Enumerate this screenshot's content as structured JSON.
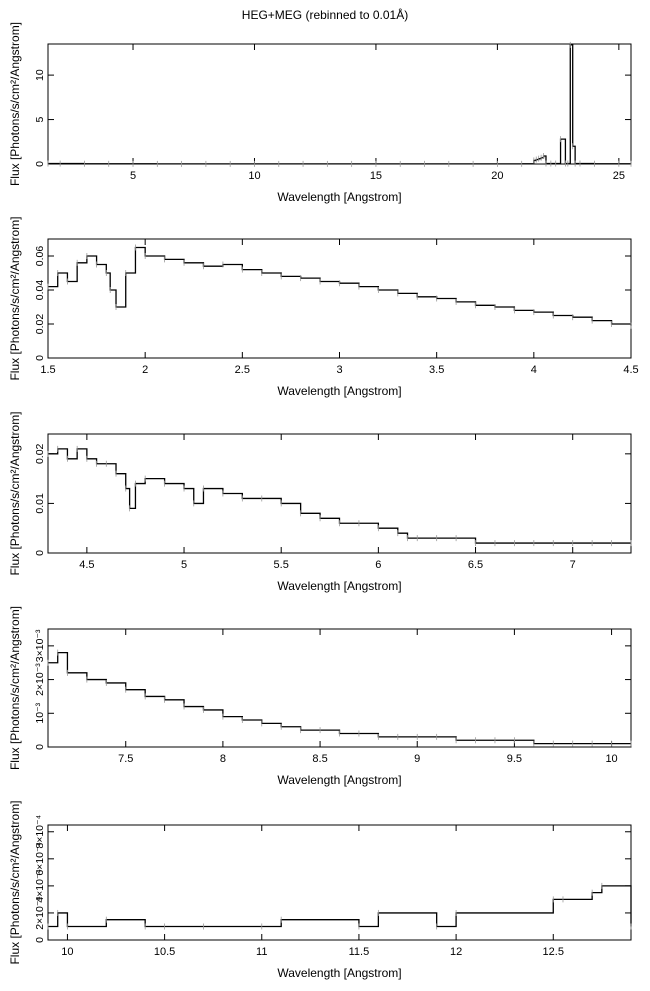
{
  "figure": {
    "title": "HEG+MEG (rebinned to 0.01Å)"
  },
  "chart_data": [
    {
      "type": "line",
      "xlabel": "Wavelength [Angstrom]",
      "ylabel": "Flux [Photons/s/cm²/Angstrom]",
      "xlim": [
        1.5,
        25.5
      ],
      "ylim": [
        0,
        13.5
      ],
      "xticks": [
        5,
        10,
        15,
        20,
        25
      ],
      "xtick_labels": [
        "5",
        "10",
        "15",
        "20",
        "25"
      ],
      "yticks": [
        0,
        5,
        10
      ],
      "ytick_labels": [
        "0",
        "5",
        "10"
      ],
      "grid": false,
      "series": [
        {
          "x": [
            1.5,
            2,
            3,
            4,
            5,
            6,
            7,
            8,
            9,
            10,
            11,
            12,
            13,
            14,
            15,
            16,
            17,
            18,
            19,
            20,
            21,
            21.5,
            21.6,
            21.7,
            21.8,
            21.9,
            22.0,
            22.2,
            22.4,
            22.6,
            22.8,
            22.9,
            23.0,
            23.1,
            23.2,
            23.4,
            24,
            25,
            25.5
          ],
          "y": [
            0.06,
            0.05,
            0.03,
            0.02,
            0.02,
            0.01,
            0.01,
            0.01,
            0.01,
            0.01,
            0.01,
            0.01,
            0.01,
            0.01,
            0.01,
            0.01,
            0.01,
            0.01,
            0.01,
            0.01,
            0.02,
            0.4,
            0.5,
            0.6,
            0.7,
            0.9,
            0.05,
            0.05,
            0.05,
            2.8,
            0.05,
            0.05,
            13.4,
            2.0,
            0.05,
            0.05,
            0.03,
            0.03,
            0.03
          ]
        }
      ]
    },
    {
      "type": "line",
      "xlabel": "Wavelength [Angstrom]",
      "ylabel": "Flux [Photons/s/cm²/Angstrom]",
      "xlim": [
        1.5,
        4.5
      ],
      "ylim": [
        0,
        0.07
      ],
      "xticks": [
        1.5,
        2,
        2.5,
        3,
        3.5,
        4,
        4.5
      ],
      "xtick_labels": [
        "1.5",
        "2",
        "2.5",
        "3",
        "3.5",
        "4",
        "4.5"
      ],
      "yticks": [
        0,
        0.02,
        0.04,
        0.06
      ],
      "ytick_labels": [
        "0",
        "0.02",
        "0.04",
        "0.06"
      ],
      "grid": false,
      "series": [
        {
          "x": [
            1.5,
            1.55,
            1.6,
            1.65,
            1.7,
            1.75,
            1.8,
            1.82,
            1.85,
            1.9,
            1.95,
            2.0,
            2.1,
            2.2,
            2.3,
            2.4,
            2.5,
            2.6,
            2.7,
            2.8,
            2.9,
            3.0,
            3.1,
            3.2,
            3.3,
            3.4,
            3.5,
            3.6,
            3.7,
            3.8,
            3.9,
            4.0,
            4.1,
            4.2,
            4.3,
            4.4,
            4.5
          ],
          "y": [
            0.042,
            0.05,
            0.045,
            0.056,
            0.06,
            0.055,
            0.05,
            0.04,
            0.03,
            0.05,
            0.065,
            0.06,
            0.058,
            0.056,
            0.054,
            0.055,
            0.052,
            0.05,
            0.048,
            0.047,
            0.045,
            0.044,
            0.042,
            0.04,
            0.038,
            0.036,
            0.035,
            0.033,
            0.031,
            0.03,
            0.028,
            0.027,
            0.025,
            0.024,
            0.022,
            0.02,
            0.019
          ]
        }
      ]
    },
    {
      "type": "line",
      "xlabel": "Wavelength [Angstrom]",
      "ylabel": "Flux [Photons/s/cm²/Angstrom]",
      "xlim": [
        4.3,
        7.3
      ],
      "ylim": [
        0,
        0.024
      ],
      "xticks": [
        4.5,
        5,
        5.5,
        6,
        6.5,
        7
      ],
      "xtick_labels": [
        "4.5",
        "5",
        "5.5",
        "6",
        "6.5",
        "7"
      ],
      "yticks": [
        0,
        0.01,
        0.02
      ],
      "ytick_labels": [
        "0",
        "0.01",
        "0.02"
      ],
      "grid": false,
      "series": [
        {
          "x": [
            4.3,
            4.35,
            4.4,
            4.45,
            4.5,
            4.55,
            4.6,
            4.65,
            4.7,
            4.72,
            4.75,
            4.8,
            4.9,
            5.0,
            5.05,
            5.1,
            5.2,
            5.3,
            5.4,
            5.5,
            5.6,
            5.7,
            5.8,
            5.9,
            6.0,
            6.1,
            6.15,
            6.2,
            6.3,
            6.4,
            6.5,
            6.6,
            6.7,
            6.8,
            6.9,
            7.0,
            7.1,
            7.2,
            7.3
          ],
          "y": [
            0.02,
            0.021,
            0.019,
            0.021,
            0.019,
            0.018,
            0.018,
            0.016,
            0.013,
            0.009,
            0.014,
            0.015,
            0.014,
            0.013,
            0.01,
            0.013,
            0.012,
            0.011,
            0.011,
            0.01,
            0.008,
            0.007,
            0.006,
            0.006,
            0.005,
            0.004,
            0.003,
            0.003,
            0.003,
            0.003,
            0.002,
            0.002,
            0.002,
            0.002,
            0.002,
            0.002,
            0.002,
            0.002,
            0.002
          ]
        }
      ]
    },
    {
      "type": "line",
      "xlabel": "Wavelength [Angstrom]",
      "ylabel": "Flux [Photons/s/cm²/Angstrom]",
      "xlim": [
        7.1,
        10.1
      ],
      "ylim": [
        0,
        0.0035
      ],
      "xticks": [
        7.5,
        8,
        8.5,
        9,
        9.5,
        10
      ],
      "xtick_labels": [
        "7.5",
        "8",
        "8.5",
        "9",
        "9.5",
        "10"
      ],
      "yticks": [
        0,
        0.001,
        0.002,
        0.003
      ],
      "ytick_labels": [
        "0",
        "10⁻³",
        "2×10⁻³",
        "3×10⁻³"
      ],
      "grid": false,
      "series": [
        {
          "x": [
            7.1,
            7.15,
            7.2,
            7.3,
            7.4,
            7.5,
            7.6,
            7.7,
            7.8,
            7.9,
            8.0,
            8.1,
            8.2,
            8.3,
            8.4,
            8.5,
            8.6,
            8.7,
            8.8,
            8.9,
            9.0,
            9.1,
            9.2,
            9.3,
            9.4,
            9.5,
            9.6,
            9.7,
            9.8,
            9.9,
            10.0,
            10.1
          ],
          "y": [
            0.0025,
            0.0028,
            0.0022,
            0.002,
            0.0019,
            0.0017,
            0.0015,
            0.0014,
            0.0012,
            0.0011,
            0.0009,
            0.0008,
            0.0007,
            0.0006,
            0.0005,
            0.0005,
            0.0004,
            0.0004,
            0.0003,
            0.0003,
            0.0003,
            0.0003,
            0.0002,
            0.0002,
            0.0002,
            0.0002,
            0.0001,
            0.0001,
            0.0001,
            0.0001,
            0.0001,
            0.0001
          ]
        }
      ]
    },
    {
      "type": "line",
      "xlabel": "Wavelength [Angstrom]",
      "ylabel": "Flux [Photons/s/cm²/Angstrom]",
      "xlim": [
        9.9,
        12.9
      ],
      "ylim": [
        0,
        0.00085
      ],
      "xticks": [
        10,
        10.5,
        11,
        11.5,
        12,
        12.5
      ],
      "xtick_labels": [
        "10",
        "10.5",
        "11",
        "11.5",
        "12",
        "12.5"
      ],
      "yticks": [
        0,
        0.0002,
        0.0004,
        0.0006,
        0.0008
      ],
      "ytick_labels": [
        "0",
        "2×10⁻⁴",
        "4×10⁻⁴",
        "6×10⁻⁴",
        "8×10⁻⁴"
      ],
      "grid": false,
      "series": [
        {
          "x": [
            9.9,
            9.95,
            10.0,
            10.2,
            10.4,
            10.5,
            10.7,
            11.0,
            11.1,
            11.5,
            11.6,
            11.9,
            12.0,
            12.5,
            12.55,
            12.7,
            12.75,
            12.9
          ],
          "y": [
            0.0001,
            0.0002,
            0.0001,
            0.00015,
            0.0001,
            0.0001,
            0.0001,
            0.0001,
            0.00015,
            0.0001,
            0.0002,
            0.0001,
            0.0002,
            0.0003,
            0.0003,
            0.00035,
            0.0004,
            0.0001
          ]
        }
      ]
    }
  ]
}
